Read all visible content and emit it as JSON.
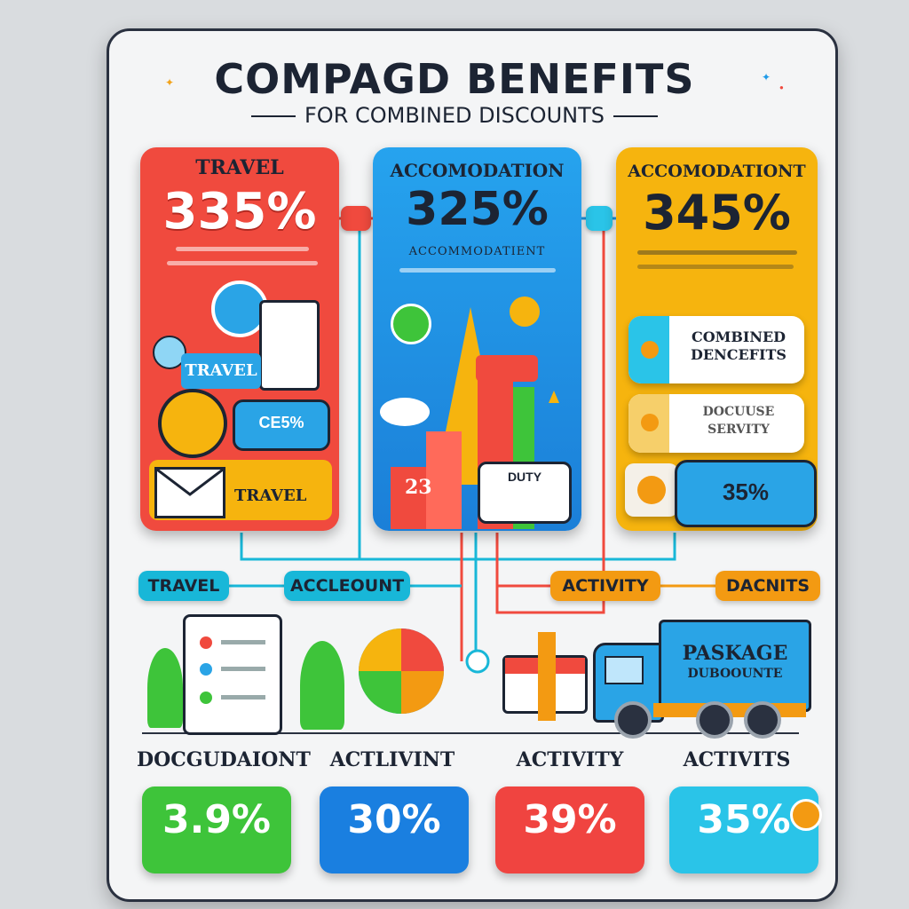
{
  "header": {
    "title": "COMPAGD BENEFITS",
    "subtitle": "FOR COMBINED DISCOUNTS"
  },
  "cards": [
    {
      "heading": "TRAVEL",
      "percent": "335%",
      "caption": "",
      "color": "#f04a3e"
    },
    {
      "heading": "ACCOMODATION",
      "percent": "325%",
      "caption": "ACCOMMODATIENT",
      "color": "#1e9ae8"
    },
    {
      "heading": "ACCOMODATIONT",
      "percent": "345%",
      "caption": "",
      "color": "#f6b40e"
    }
  ],
  "travel_card": {
    "travel_tag": "TRAVEL",
    "mail_tag": "TRAVEL",
    "chip_label": "CE5%"
  },
  "accommodation_card": {
    "chart_value": "23",
    "badge": "DUTY"
  },
  "benefit_tiles": [
    {
      "label": "COMBINED\nDENCEFITS"
    },
    {
      "label": "DOCUUSE\nSERVITY"
    },
    {
      "label": "35%"
    }
  ],
  "connector_pills": [
    {
      "label": "TRAVEL",
      "color": "#18b7d8"
    },
    {
      "label": "ACCLEOUNT",
      "color": "#18b7d8"
    },
    {
      "label": "ACTIVITY",
      "color": "#f39a12"
    },
    {
      "label": "DACNITS",
      "color": "#f39a12"
    }
  ],
  "truck": {
    "line1": "PASKAGE",
    "line2": "DUBOOUNTE",
    "color": "#2aa4e6"
  },
  "bottom_items": [
    {
      "label": "DOCGUDAIONT",
      "value": "3.9%",
      "tag": "",
      "color": "#3ec43a"
    },
    {
      "label": "ACTLIVINT",
      "value": "30%",
      "tag": "",
      "color": "#1a7fe0"
    },
    {
      "label": "ACTIVITY",
      "value": "39%",
      "tag": "",
      "color": "#f04440"
    },
    {
      "label": "ACTIVITS",
      "value": "35%",
      "tag": "",
      "color": "#2ac4e8"
    }
  ]
}
